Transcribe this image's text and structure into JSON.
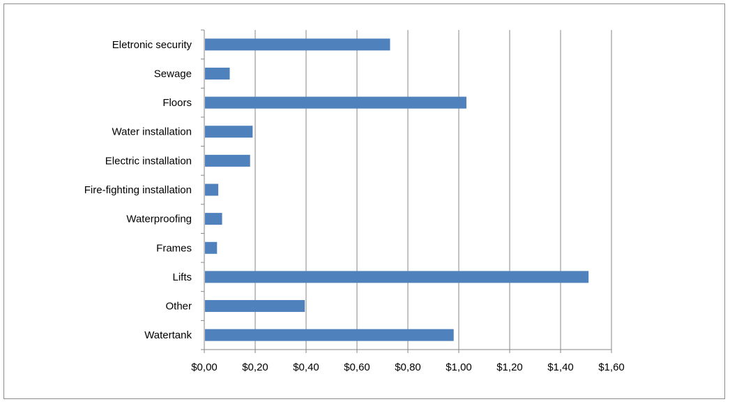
{
  "chart_data": {
    "type": "bar",
    "orientation": "horizontal",
    "title": "",
    "xlabel": "",
    "ylabel": "",
    "categories": [
      "Eletronic security",
      "Sewage",
      "Floors",
      "Water installation",
      "Electric installation",
      "Fire-fighting installation",
      "Waterproofing",
      "Frames",
      "Lifts",
      "Other",
      "Watertank"
    ],
    "values": [
      0.73,
      0.1,
      1.03,
      0.19,
      0.18,
      0.055,
      0.07,
      0.05,
      1.51,
      0.395,
      0.98
    ],
    "xlim": [
      0,
      1.6
    ],
    "xticks": [
      0,
      0.2,
      0.4,
      0.6,
      0.8,
      1.0,
      1.2,
      1.4,
      1.6
    ],
    "xtick_labels": [
      "$0,00",
      "$0,20",
      "$0,40",
      "$0,60",
      "$0,80",
      "$1,00",
      "$1,20",
      "$1,40",
      "$1,60"
    ],
    "grid": "vertical",
    "legend": "none",
    "colors": {
      "bar": "#4f81bd",
      "grid": "#868686",
      "axis": "#868686"
    }
  }
}
